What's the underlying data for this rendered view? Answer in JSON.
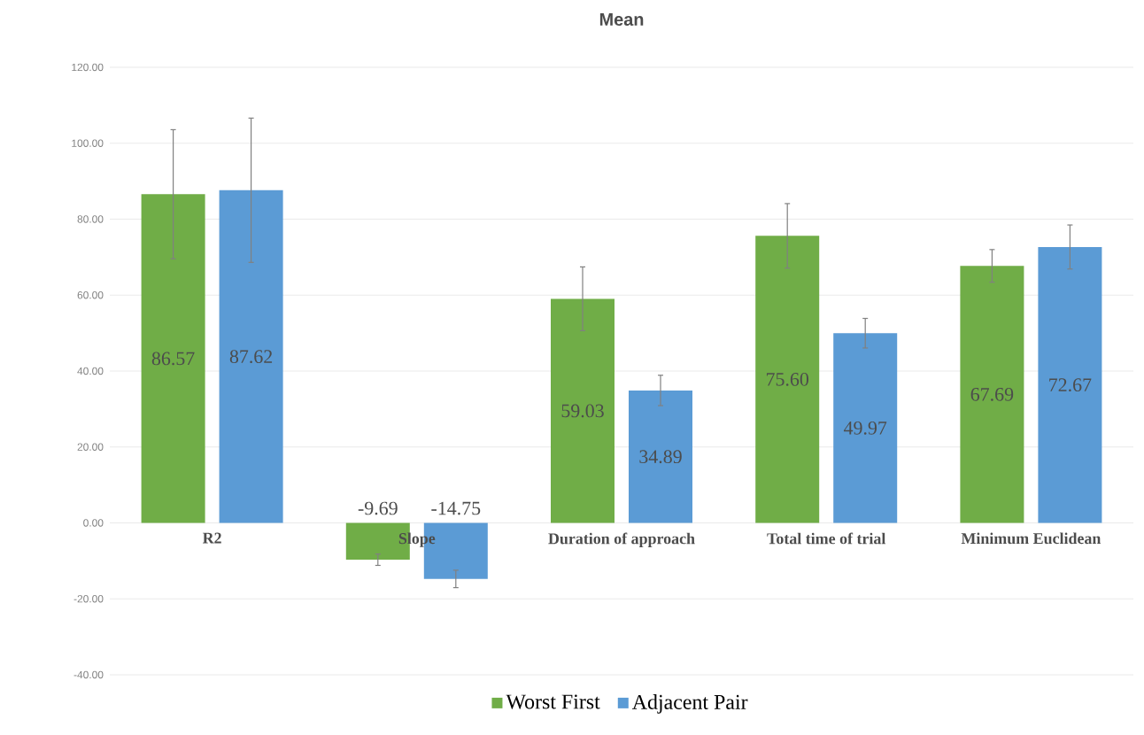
{
  "chart_data": {
    "type": "bar",
    "title": "Mean",
    "categories": [
      "R2",
      "Slope",
      "Duration of approach",
      "Total time of trial",
      "Minimum Euclidean"
    ],
    "series": [
      {
        "name": "Worst First",
        "color": "#70ad47",
        "values": [
          86.57,
          -9.69,
          59.03,
          75.6,
          67.69
        ],
        "errors": [
          17,
          1.5,
          8.4,
          8.5,
          4.3
        ],
        "value_labels": [
          "86.57",
          "-9.69",
          "59.03",
          "75.60",
          "67.69"
        ]
      },
      {
        "name": "Adjacent Pair",
        "color": "#5b9bd5",
        "values": [
          87.62,
          -14.75,
          34.89,
          49.97,
          72.67
        ],
        "errors": [
          19,
          2.3,
          4,
          3.9,
          5.8
        ],
        "value_labels": [
          "87.62",
          "-14.75",
          "34.89",
          "49.97",
          "72.67"
        ]
      }
    ],
    "ylim": [
      -40,
      120
    ],
    "yticks": [
      {
        "value": -40,
        "label": "-40.00"
      },
      {
        "value": -20,
        "label": "-20.00"
      },
      {
        "value": 0,
        "label": "0.00"
      },
      {
        "value": 20,
        "label": "20.00"
      },
      {
        "value": 40,
        "label": "40.00"
      },
      {
        "value": 60,
        "label": "60.00"
      },
      {
        "value": 80,
        "label": "80.00"
      },
      {
        "value": 100,
        "label": "100.00"
      },
      {
        "value": 120,
        "label": "120.00"
      }
    ],
    "grid": "y",
    "legend": "bottom"
  }
}
